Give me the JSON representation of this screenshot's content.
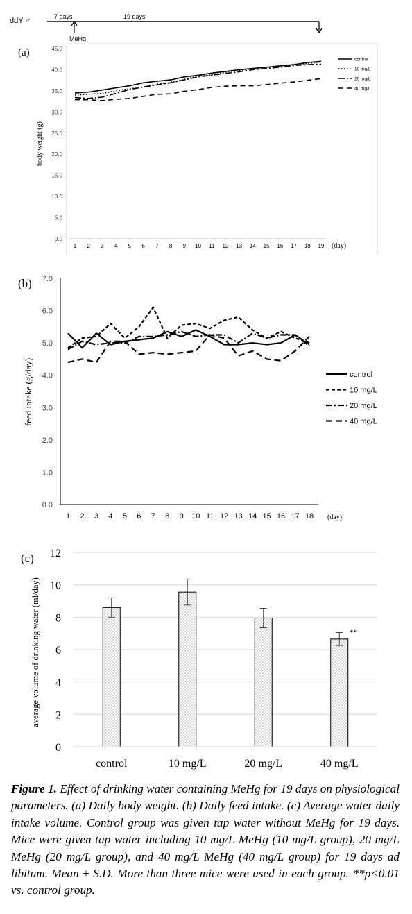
{
  "timeline": {
    "strain": "ddY ♂",
    "acclimation": "7 days",
    "exposure": "19 days",
    "start_label": "MeHg"
  },
  "chart_data": [
    {
      "panel": "(a)",
      "type": "line",
      "title": "",
      "xlabel": "(day)",
      "ylabel": "body weight (g)",
      "x": [
        1,
        2,
        3,
        4,
        5,
        6,
        7,
        8,
        9,
        10,
        11,
        12,
        13,
        14,
        15,
        16,
        17,
        18,
        19
      ],
      "ylim": [
        0,
        45
      ],
      "yticks": [
        "0.0",
        "5.0",
        "10.0",
        "15.0",
        "20.0",
        "25.0",
        "30.0",
        "35.0",
        "40.0",
        "45.0"
      ],
      "legend_position": "top-right",
      "grid": false,
      "series": [
        {
          "name": "control",
          "style": "solid",
          "values": [
            34.5,
            34.7,
            35.2,
            35.7,
            36.2,
            36.9,
            37.3,
            37.6,
            38.3,
            38.7,
            39.2,
            39.6,
            40.0,
            40.3,
            40.6,
            40.9,
            41.2,
            41.7,
            42.0
          ]
        },
        {
          "name": "10 mg/L",
          "style": "dotted",
          "values": [
            34.0,
            34.2,
            34.4,
            35.0,
            35.5,
            35.9,
            36.6,
            37.0,
            37.7,
            38.5,
            38.8,
            39.4,
            39.8,
            40.2,
            40.6,
            41.0,
            41.2,
            41.5,
            41.8
          ]
        },
        {
          "name": "20 mg/L",
          "style": "dashdot",
          "values": [
            33.4,
            33.2,
            33.5,
            34.4,
            35.3,
            35.9,
            36.4,
            36.9,
            37.6,
            38.3,
            38.7,
            39.1,
            39.5,
            40.0,
            40.3,
            40.6,
            41.0,
            41.2,
            41.3
          ]
        },
        {
          "name": "40 mg/L",
          "style": "dashed",
          "values": [
            32.9,
            32.9,
            32.7,
            33.0,
            33.2,
            33.7,
            34.2,
            34.3,
            34.9,
            35.3,
            35.8,
            36.1,
            36.2,
            36.2,
            36.5,
            36.8,
            37.1,
            37.5,
            37.9
          ]
        }
      ]
    },
    {
      "panel": "(b)",
      "type": "line",
      "title": "",
      "xlabel": "(day)",
      "ylabel": "feed intake (g/day)",
      "x": [
        1,
        2,
        3,
        4,
        5,
        6,
        7,
        8,
        9,
        10,
        11,
        12,
        13,
        14,
        15,
        16,
        17,
        18
      ],
      "ylim": [
        0,
        7
      ],
      "yticks": [
        "0.0",
        "1.0",
        "2.0",
        "3.0",
        "4.0",
        "5.0",
        "6.0",
        "7.0"
      ],
      "legend_position": "right",
      "grid": false,
      "series": [
        {
          "name": "control",
          "style": "solid",
          "values": [
            5.3,
            4.85,
            5.3,
            4.95,
            5.05,
            5.1,
            5.15,
            5.35,
            5.2,
            5.4,
            5.2,
            4.95,
            4.95,
            5.0,
            4.95,
            5.0,
            5.25,
            4.95
          ]
        },
        {
          "name": "10 mg/L",
          "style": "shortdash",
          "values": [
            4.85,
            5.15,
            5.2,
            5.6,
            5.15,
            5.5,
            6.1,
            5.15,
            5.55,
            5.6,
            5.45,
            5.7,
            5.8,
            5.4,
            5.15,
            5.35,
            5.15,
            5.0
          ]
        },
        {
          "name": "20 mg/L",
          "style": "dashdot",
          "values": [
            4.8,
            5.05,
            4.95,
            5.0,
            5.0,
            5.2,
            5.2,
            5.25,
            5.35,
            5.2,
            5.25,
            5.25,
            5.0,
            5.3,
            5.15,
            5.25,
            5.25,
            4.9
          ]
        },
        {
          "name": "40 mg/L",
          "style": "longdash",
          "values": [
            4.4,
            4.5,
            4.4,
            5.05,
            5.05,
            4.65,
            4.7,
            4.65,
            4.7,
            4.75,
            5.25,
            5.15,
            4.6,
            4.75,
            4.5,
            4.45,
            4.75,
            5.2
          ]
        }
      ]
    },
    {
      "panel": "(c)",
      "type": "bar",
      "title": "",
      "xlabel": "",
      "ylabel": "average volume of drinking water (ml/day)",
      "categories": [
        "control",
        "10 mg/L",
        "20 mg/L",
        "40 mg/L"
      ],
      "values": [
        8.6,
        9.55,
        7.95,
        6.65
      ],
      "errors": [
        0.6,
        0.8,
        0.6,
        0.4
      ],
      "annotations": [
        "",
        "",
        "",
        "**"
      ],
      "ylim": [
        0,
        12
      ],
      "yticks": [
        "0",
        "2",
        "4",
        "6",
        "8",
        "10",
        "12"
      ],
      "grid": true
    }
  ],
  "caption": {
    "label": "Figure 1.",
    "text": " Effect of drinking water containing MeHg for 19 days on physiological parameters. (a) Daily body weight. (b) Daily feed intake. (c) Average water daily intake volume. Control group was given tap water without MeHg for 19 days. Mice were given tap water including 10 mg/L MeHg (10 mg/L group), 20 mg/L MeHg (20 mg/L group), and 40 mg/L MeHg (40 mg/L group) for 19 days ad libitum. Mean ± S.D. More than three mice were used in each group. **p<0.01 vs. control group."
  }
}
